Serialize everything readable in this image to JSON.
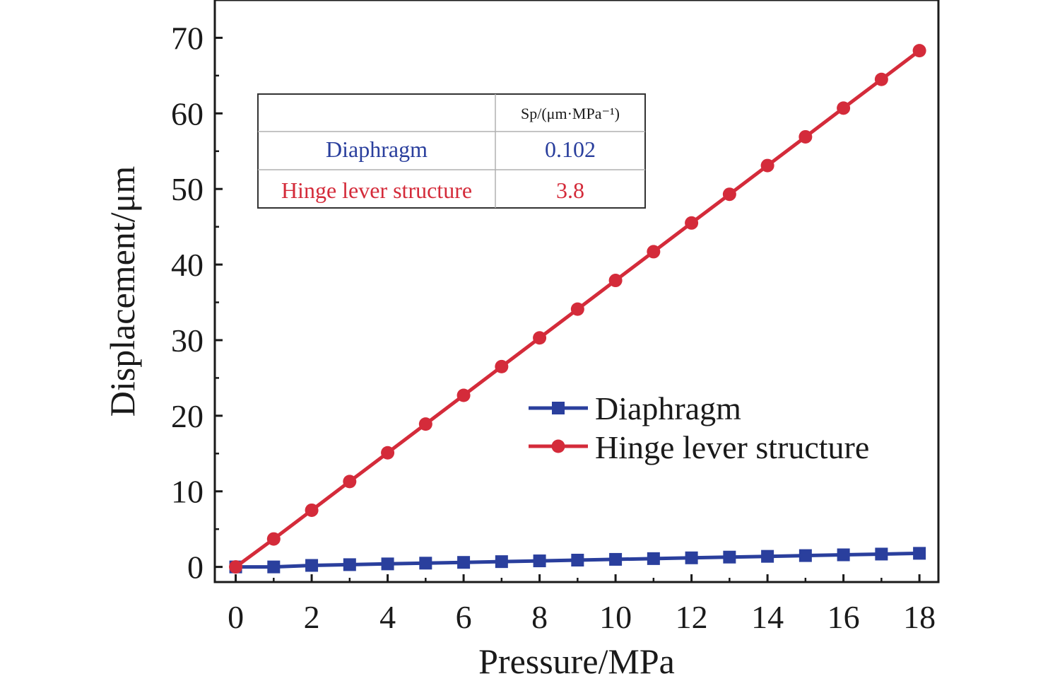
{
  "chart_data": {
    "type": "line",
    "xlabel": "Pressure/MPa",
    "ylabel": "Displacement/μm",
    "xlim": [
      -0.55,
      18.5
    ],
    "ylim": [
      -2,
      75
    ],
    "xticks": [
      0,
      2,
      4,
      6,
      8,
      10,
      12,
      14,
      16,
      18
    ],
    "yticks": [
      0,
      10,
      20,
      30,
      40,
      50,
      60,
      70
    ],
    "x": [
      0,
      1,
      2,
      3,
      4,
      5,
      6,
      7,
      8,
      9,
      10,
      11,
      12,
      13,
      14,
      15,
      16,
      17,
      18
    ],
    "series": [
      {
        "name": "Diaphragm",
        "color": "#2a3f9d",
        "marker": "square",
        "values": [
          0.0,
          0.0,
          0.2,
          0.3,
          0.4,
          0.5,
          0.6,
          0.7,
          0.8,
          0.9,
          1.0,
          1.1,
          1.2,
          1.3,
          1.4,
          1.5,
          1.6,
          1.7,
          1.8
        ]
      },
      {
        "name": "Hinge lever structure",
        "color": "#d42b3a",
        "marker": "circle",
        "values": [
          0.0,
          3.7,
          7.5,
          11.3,
          15.1,
          18.9,
          22.7,
          26.5,
          30.3,
          34.1,
          37.9,
          41.7,
          45.5,
          49.3,
          53.1,
          56.9,
          60.7,
          64.5,
          68.3
        ]
      }
    ],
    "legend": {
      "position": "center-right",
      "entries": [
        "Diaphragm",
        "Hinge lever structure"
      ]
    },
    "grid": false,
    "inset_table": {
      "header": [
        "",
        "Sp/(μm·MPa⁻¹)"
      ],
      "rows": [
        {
          "label": "Diaphragm",
          "value": "0.102",
          "color": "#2a3f9d"
        },
        {
          "label": "Hinge lever structure",
          "value": "3.8",
          "color": "#d42b3a"
        }
      ]
    }
  }
}
